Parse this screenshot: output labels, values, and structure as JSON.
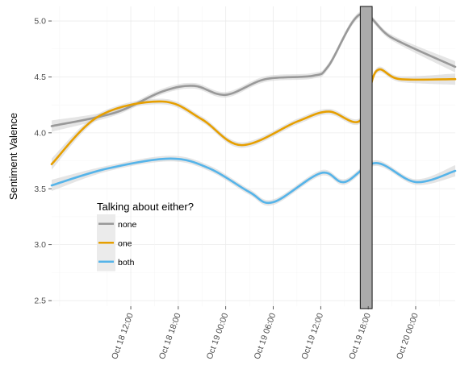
{
  "chart_data": {
    "type": "line",
    "title": "",
    "xlabel": "",
    "ylabel": "Sentiment Valence",
    "ylim": [
      2.45,
      5.13
    ],
    "xlim": [
      "2014-10-18 02:00",
      "2014-10-20 05:00"
    ],
    "y_ticks": [
      "2.5",
      "3.0",
      "3.5",
      "4.0",
      "4.5",
      "5.0"
    ],
    "x_ticks": [
      {
        "at": "2014-10-18 12:00",
        "label": "Oct 18 12:00"
      },
      {
        "at": "2014-10-18 18:00",
        "label": "Oct 18 18:00"
      },
      {
        "at": "2014-10-19 00:00",
        "label": "Oct 19 00:00"
      },
      {
        "at": "2014-10-19 06:00",
        "label": "Oct 19 06:00"
      },
      {
        "at": "2014-10-19 12:00",
        "label": "Oct 19 12:00"
      },
      {
        "at": "2014-10-19 18:00",
        "label": "Oct 19 18:00"
      },
      {
        "at": "2014-10-20 00:00",
        "label": "Oct 20 00:00"
      }
    ],
    "grid": true,
    "legend": {
      "title": "Talking about either?",
      "placement": "inside left"
    },
    "highlight": {
      "x_start": "2014-10-19 17:00",
      "x_end": "2014-10-19 18:30",
      "color": "#ababab"
    },
    "series": [
      {
        "name": "none",
        "color": "#999999",
        "x": [
          "2014-10-18 02:00",
          "2014-10-18 10:00",
          "2014-10-18 16:00",
          "2014-10-18 20:00",
          "2014-10-19 00:00",
          "2014-10-19 05:00",
          "2014-10-19 11:00",
          "2014-10-19 13:00",
          "2014-10-19 17:00",
          "2014-10-19 21:00",
          "2014-10-20 05:00"
        ],
        "y": [
          4.06,
          4.18,
          4.37,
          4.42,
          4.34,
          4.48,
          4.51,
          4.6,
          5.06,
          4.85,
          4.59
        ]
      },
      {
        "name": "one",
        "color": "#E69F00",
        "x": [
          "2014-10-18 02:00",
          "2014-10-18 08:00",
          "2014-10-18 16:00",
          "2014-10-18 21:00",
          "2014-10-19 02:00",
          "2014-10-19 09:00",
          "2014-10-19 13:00",
          "2014-10-19 17:00",
          "2014-10-19 19:00",
          "2014-10-19 22:00",
          "2014-10-20 05:00"
        ],
        "y": [
          3.72,
          4.15,
          4.28,
          4.12,
          3.89,
          4.1,
          4.19,
          4.11,
          4.55,
          4.48,
          4.48
        ]
      },
      {
        "name": "both",
        "color": "#56B4E9",
        "x": [
          "2014-10-18 02:00",
          "2014-10-18 09:00",
          "2014-10-18 17:00",
          "2014-10-18 22:00",
          "2014-10-19 03:00",
          "2014-10-19 06:00",
          "2014-10-19 12:00",
          "2014-10-19 15:00",
          "2014-10-19 19:00",
          "2014-10-20 00:00",
          "2014-10-20 05:00"
        ],
        "y": [
          3.53,
          3.68,
          3.77,
          3.68,
          3.47,
          3.38,
          3.64,
          3.56,
          3.73,
          3.56,
          3.66
        ]
      }
    ]
  }
}
